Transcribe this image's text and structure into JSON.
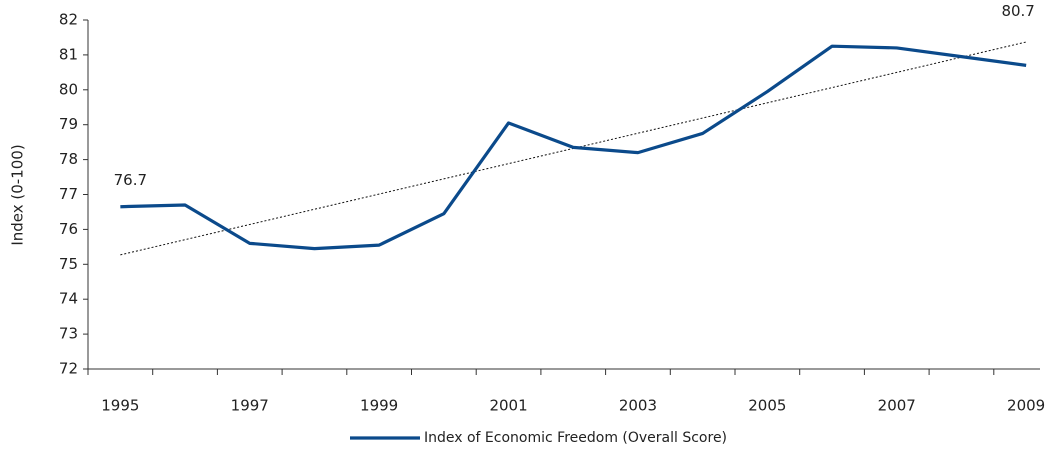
{
  "chart_data": {
    "type": "line",
    "y_label": "Index (0-100)",
    "categories": [
      "1995",
      null,
      "1997",
      null,
      "1999",
      null,
      "2001",
      null,
      "2003",
      null,
      "2005",
      null,
      "2007",
      null,
      "2009"
    ],
    "series": [
      {
        "name": "Index of Economic Freedom (Overall Score)",
        "color": "#0b4a8b",
        "values": [
          76.65,
          76.7,
          75.6,
          75.45,
          75.55,
          76.45,
          79.05,
          78.35,
          78.2,
          78.75,
          79.95,
          81.25,
          81.2,
          80.95,
          80.7
        ],
        "value_labels": [
          "76.7",
          null,
          null,
          null,
          null,
          null,
          null,
          null,
          null,
          null,
          null,
          null,
          null,
          null,
          "80.7"
        ]
      }
    ],
    "trendline": true,
    "ylim": [
      72,
      82
    ],
    "yticks": [
      72,
      73,
      74,
      75,
      76,
      77,
      78,
      79,
      80,
      81,
      82
    ],
    "legend": "bottom"
  }
}
